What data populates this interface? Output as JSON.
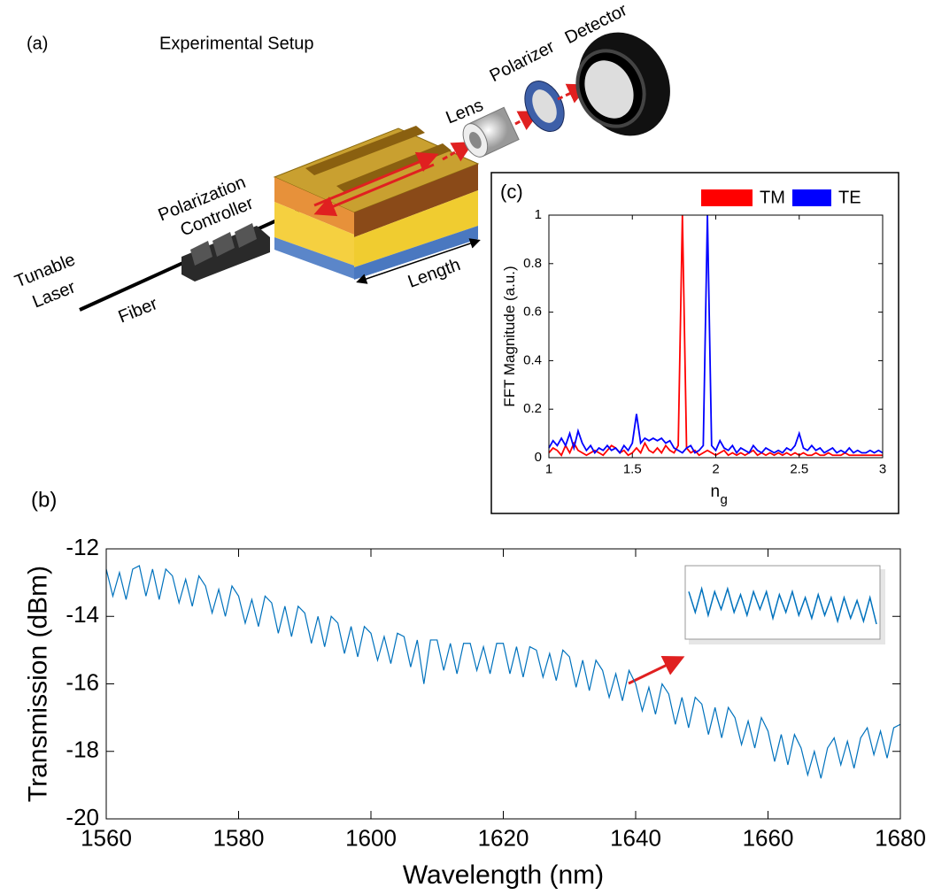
{
  "diagram": {
    "panel_label": "(a)",
    "title": "Experimental Setup",
    "detector": "Detector",
    "polarizer": "Polarizer",
    "lens": "Lens",
    "controller_line1": "Polarization",
    "controller_line2": "Controller",
    "laser_line1": "Tunable",
    "laser_line2": "Laser",
    "fiber": "Fiber",
    "length": "Length"
  },
  "chart_data": [
    {
      "type": "line",
      "panel_label": "(c)",
      "ylabel": "FFT Magnitude (a.u.)",
      "xlabel": "n",
      "xlabel_subscript": "g",
      "xlim": [
        1,
        3
      ],
      "xticks": [
        1,
        1.5,
        2,
        2.5,
        3
      ],
      "ylim": [
        0,
        1
      ],
      "yticks": [
        0,
        0.2,
        0.4,
        0.6,
        0.8,
        1
      ],
      "legend": "upper right",
      "x": [
        1,
        1.025,
        1.05,
        1.075,
        1.1,
        1.125,
        1.15,
        1.175,
        1.2,
        1.225,
        1.25,
        1.275,
        1.3,
        1.325,
        1.35,
        1.375,
        1.4,
        1.425,
        1.45,
        1.475,
        1.5,
        1.525,
        1.55,
        1.575,
        1.6,
        1.625,
        1.65,
        1.675,
        1.7,
        1.725,
        1.75,
        1.775,
        1.8,
        1.825,
        1.85,
        1.875,
        1.9,
        1.925,
        1.95,
        1.975,
        2,
        2.025,
        2.05,
        2.075,
        2.1,
        2.125,
        2.15,
        2.175,
        2.2,
        2.225,
        2.25,
        2.275,
        2.3,
        2.325,
        2.35,
        2.375,
        2.4,
        2.425,
        2.45,
        2.475,
        2.5,
        2.525,
        2.55,
        2.575,
        2.6,
        2.625,
        2.65,
        2.675,
        2.7,
        2.725,
        2.75,
        2.775,
        2.8,
        2.825,
        2.85,
        2.875,
        2.9,
        2.925,
        2.95,
        2.975,
        3
      ],
      "series": [
        {
          "name": "TM",
          "color": "#ff0000",
          "values": [
            0.02,
            0.04,
            0.03,
            0.01,
            0.05,
            0.02,
            0.06,
            0.03,
            0.02,
            0.01,
            0.02,
            0.03,
            0.02,
            0.01,
            0.03,
            0.05,
            0.04,
            0.02,
            0.03,
            0.01,
            0.02,
            0.04,
            0.02,
            0.06,
            0.03,
            0.02,
            0.04,
            0.02,
            0.05,
            0.03,
            0.02,
            0.05,
            1.0,
            0.04,
            0.02,
            0.03,
            0.01,
            0.02,
            0.03,
            0.02,
            0.01,
            0.02,
            0.03,
            0.01,
            0.02,
            0.01,
            0.02,
            0.01,
            0.02,
            0.03,
            0.01,
            0.02,
            0.01,
            0.02,
            0.01,
            0.02,
            0.01,
            0.02,
            0.01,
            0.02,
            0.01,
            0.02,
            0.01,
            0.01,
            0.02,
            0.01,
            0.01,
            0.02,
            0.01,
            0.01,
            0.01,
            0.02,
            0.01,
            0.01,
            0.01,
            0.01,
            0.01,
            0.01,
            0.01,
            0.01,
            0.01
          ]
        },
        {
          "name": "TE",
          "color": "#0000ff",
          "values": [
            0.04,
            0.07,
            0.05,
            0.08,
            0.05,
            0.1,
            0.04,
            0.11,
            0.06,
            0.03,
            0.05,
            0.02,
            0.04,
            0.03,
            0.05,
            0.03,
            0.04,
            0.02,
            0.05,
            0.03,
            0.06,
            0.18,
            0.06,
            0.08,
            0.07,
            0.08,
            0.07,
            0.08,
            0.06,
            0.07,
            0.04,
            0.03,
            0.02,
            0.04,
            0.05,
            0.02,
            0.03,
            0.05,
            1.0,
            0.05,
            0.03,
            0.07,
            0.04,
            0.03,
            0.05,
            0.02,
            0.04,
            0.03,
            0.02,
            0.05,
            0.03,
            0.02,
            0.04,
            0.03,
            0.02,
            0.03,
            0.02,
            0.04,
            0.03,
            0.05,
            0.1,
            0.04,
            0.03,
            0.05,
            0.03,
            0.04,
            0.02,
            0.03,
            0.04,
            0.02,
            0.03,
            0.02,
            0.04,
            0.02,
            0.03,
            0.02,
            0.02,
            0.03,
            0.02,
            0.03,
            0.02
          ]
        }
      ]
    },
    {
      "type": "line",
      "panel_label": "(b)",
      "ylabel": "Transmission (dBm)",
      "xlabel": "Wavelength (nm)",
      "xlim": [
        1560,
        1680
      ],
      "xticks": [
        1560,
        1580,
        1600,
        1620,
        1640,
        1660,
        1680
      ],
      "ylim": [
        -20,
        -12
      ],
      "yticks": [
        -20,
        -18,
        -16,
        -14,
        -12
      ],
      "x": [
        1560,
        1561,
        1562,
        1563,
        1564,
        1565,
        1566,
        1567,
        1568,
        1569,
        1570,
        1571,
        1572,
        1573,
        1574,
        1575,
        1576,
        1577,
        1578,
        1579,
        1580,
        1581,
        1582,
        1583,
        1584,
        1585,
        1586,
        1587,
        1588,
        1589,
        1590,
        1591,
        1592,
        1593,
        1594,
        1595,
        1596,
        1597,
        1598,
        1599,
        1600,
        1601,
        1602,
        1603,
        1604,
        1605,
        1606,
        1607,
        1608,
        1609,
        1610,
        1611,
        1612,
        1613,
        1614,
        1615,
        1616,
        1617,
        1618,
        1619,
        1620,
        1621,
        1622,
        1623,
        1624,
        1625,
        1626,
        1627,
        1628,
        1629,
        1630,
        1631,
        1632,
        1633,
        1634,
        1635,
        1636,
        1637,
        1638,
        1639,
        1640,
        1641,
        1642,
        1643,
        1644,
        1645,
        1646,
        1647,
        1648,
        1649,
        1650,
        1651,
        1652,
        1653,
        1654,
        1655,
        1656,
        1657,
        1658,
        1659,
        1660,
        1661,
        1662,
        1663,
        1664,
        1665,
        1666,
        1667,
        1668,
        1669,
        1670,
        1671,
        1672,
        1673,
        1674,
        1675,
        1676,
        1677,
        1678,
        1679,
        1680
      ],
      "series": [
        {
          "color": "#0072bd",
          "values": [
            -12.6,
            -13.4,
            -12.7,
            -13.5,
            -12.6,
            -12.5,
            -13.4,
            -12.6,
            -13.5,
            -12.6,
            -12.8,
            -13.6,
            -12.9,
            -13.7,
            -12.8,
            -13.1,
            -13.9,
            -13.2,
            -14.0,
            -13.1,
            -13.4,
            -14.2,
            -13.5,
            -14.3,
            -13.4,
            -13.6,
            -14.5,
            -13.7,
            -14.6,
            -13.7,
            -13.9,
            -14.8,
            -14.0,
            -14.9,
            -14.0,
            -14.2,
            -15.1,
            -14.3,
            -15.2,
            -14.3,
            -14.5,
            -15.3,
            -14.6,
            -15.4,
            -14.5,
            -14.6,
            -15.5,
            -14.7,
            -16.0,
            -14.7,
            -14.7,
            -15.6,
            -14.8,
            -15.7,
            -14.8,
            -14.8,
            -15.6,
            -14.9,
            -15.7,
            -14.8,
            -14.8,
            -15.7,
            -14.9,
            -15.8,
            -14.9,
            -15.0,
            -15.8,
            -15.1,
            -15.9,
            -15.0,
            -15.2,
            -16.1,
            -15.3,
            -16.2,
            -15.3,
            -15.6,
            -16.4,
            -15.7,
            -16.5,
            -15.6,
            -16.0,
            -16.8,
            -16.1,
            -16.9,
            -16.0,
            -16.3,
            -17.2,
            -16.4,
            -17.3,
            -16.4,
            -16.6,
            -17.5,
            -16.7,
            -17.6,
            -16.7,
            -17.0,
            -17.8,
            -17.1,
            -17.9,
            -17.0,
            -17.4,
            -18.3,
            -17.5,
            -18.4,
            -17.5,
            -17.9,
            -18.7,
            -18.0,
            -18.8,
            -17.9,
            -17.6,
            -18.4,
            -17.7,
            -18.5,
            -17.6,
            -17.3,
            -18.1,
            -17.4,
            -18.2,
            -17.3,
            -17.2
          ]
        }
      ],
      "inset": {
        "values": [
          -15.6,
          -16.3,
          -15.5,
          -16.4,
          -15.6,
          -16.2,
          -15.5,
          -16.3,
          -15.7,
          -16.4,
          -15.6,
          -16.2,
          -15.6,
          -16.5,
          -15.7,
          -16.3,
          -15.6,
          -16.4,
          -15.8,
          -16.5,
          -15.7,
          -16.4,
          -15.8,
          -16.6,
          -15.8,
          -16.5,
          -15.9,
          -16.6,
          -15.8,
          -16.7
        ]
      }
    }
  ]
}
